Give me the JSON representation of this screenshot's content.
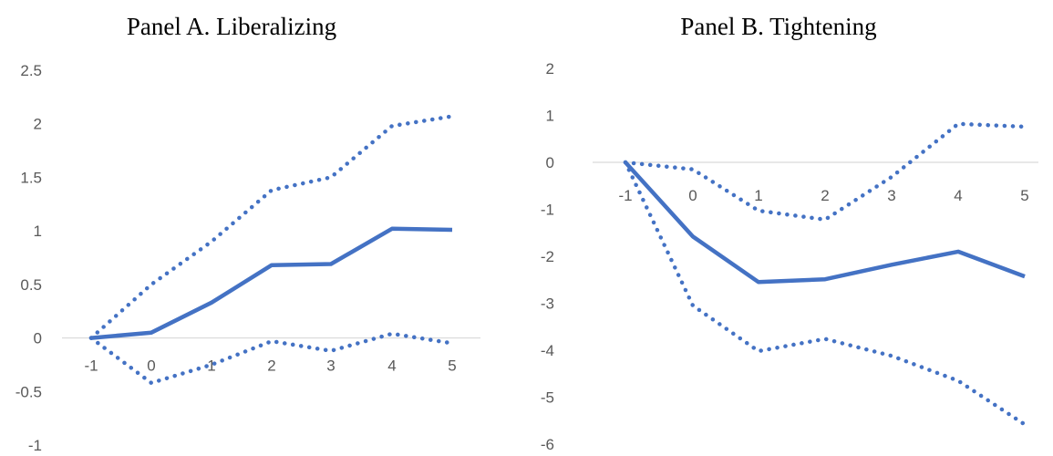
{
  "chart_data": [
    {
      "type": "line",
      "title": "Panel A. Liberalizing",
      "x": [
        -1,
        0,
        1,
        2,
        3,
        4,
        5
      ],
      "x_tick_labels": [
        "-1",
        "0",
        "1",
        "2",
        "3",
        "4",
        "5"
      ],
      "y_tick_labels": [
        "2.5",
        "2",
        "1.5",
        "1",
        "0.5",
        "0",
        "-0.5",
        "-1"
      ],
      "y_ticks": [
        2.5,
        2,
        1.5,
        1,
        0.5,
        0,
        -0.5,
        -1
      ],
      "ylim": [
        -1,
        2.5
      ],
      "grid": false,
      "series": [
        {
          "style": "solid",
          "values": [
            0,
            0.05,
            0.33,
            0.68,
            0.69,
            1.02,
            1.01
          ]
        },
        {
          "style": "dotted",
          "values": [
            0,
            0.5,
            0.9,
            1.38,
            1.5,
            1.98,
            2.07
          ]
        },
        {
          "style": "dotted",
          "values": [
            0,
            -0.42,
            -0.25,
            -0.03,
            -0.12,
            0.04,
            -0.05
          ]
        }
      ],
      "color": "#4472C4"
    },
    {
      "type": "line",
      "title": "Panel B. Tightening",
      "x": [
        -1,
        0,
        1,
        2,
        3,
        4,
        5
      ],
      "x_tick_labels": [
        "-1",
        "0",
        "1",
        "2",
        "3",
        "4",
        "5"
      ],
      "y_tick_labels": [
        "2",
        "1",
        "0",
        "-1",
        "-2",
        "-3",
        "-4",
        "-5",
        "-6"
      ],
      "y_ticks": [
        2,
        1,
        0,
        -1,
        -2,
        -3,
        -4,
        -5,
        -6
      ],
      "ylim": [
        -6,
        2
      ],
      "grid": false,
      "series": [
        {
          "style": "solid",
          "values": [
            0,
            -1.58,
            -2.55,
            -2.49,
            -2.18,
            -1.9,
            -2.43
          ]
        },
        {
          "style": "dotted",
          "values": [
            0,
            -0.15,
            -1.03,
            -1.22,
            -0.31,
            0.82,
            0.76
          ]
        },
        {
          "style": "dotted",
          "values": [
            0,
            -3.05,
            -4.02,
            -3.76,
            -4.12,
            -4.65,
            -5.58
          ]
        }
      ],
      "color": "#4472C4"
    }
  ]
}
